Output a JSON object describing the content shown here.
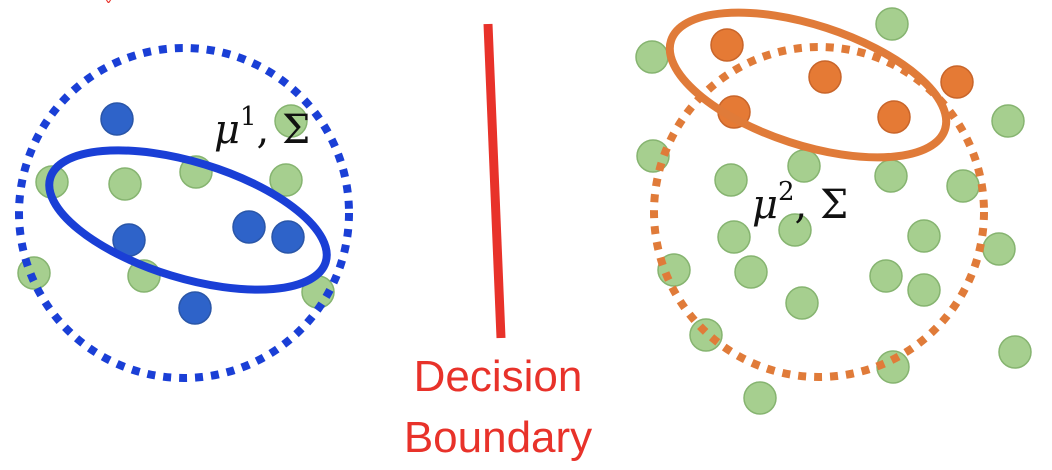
{
  "colors": {
    "class1": "#2e63c9",
    "class1_stroke": "#1a3fd6",
    "class2": "#e57a35",
    "class2_stroke": "#e07b39",
    "unlabeled": "#a6cf8f",
    "unlabeled_stroke": "#86b470",
    "boundary": "#e8322a"
  },
  "labels": {
    "mu1_base": "μ",
    "mu1_sup": "1",
    "mu1_tail": ", Σ",
    "mu2_base": "μ",
    "mu2_sup": "2",
    "mu2_tail": ", Σ",
    "boundary_line1": "Decision",
    "boundary_line2": "Boundary"
  },
  "top_mark": "ˇ"
}
